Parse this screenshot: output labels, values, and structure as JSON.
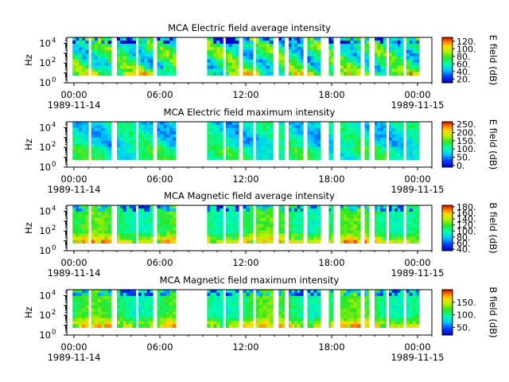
{
  "figure": {
    "instrument": "MCA"
  },
  "chart_data": [
    {
      "type": "heatmap",
      "title": "MCA  Electric field average intensity",
      "ylabel": "Hz",
      "yscale": "log",
      "ylim": [
        1,
        40000
      ],
      "y_ticks": [
        {
          "base": "10",
          "exp": "0"
        },
        {
          "base": "10",
          "exp": "2"
        },
        {
          "base": "10",
          "exp": "4"
        }
      ],
      "x_ticks": [
        "00:00",
        "06:00",
        "12:00",
        "18:00",
        "00:00"
      ],
      "x_start_date": "1989-11-14",
      "x_end_date": "1989-11-15",
      "xlim_hours": [
        -0.5,
        25
      ],
      "colorbar": {
        "label": "E field (dB)",
        "min": 10,
        "max": 130,
        "ticks": [
          "120.",
          "100.",
          "80.",
          "60.",
          "40.",
          "20."
        ],
        "tick_values": [
          120,
          100,
          80,
          60,
          40,
          20
        ]
      },
      "coverage_hours": [
        [
          -0.1,
          1.0
        ],
        [
          1.2,
          2.6
        ],
        [
          3.0,
          4.3
        ],
        [
          4.5,
          5.5
        ],
        [
          5.8,
          7.1
        ],
        [
          9.3,
          10.4
        ],
        [
          10.6,
          11.5
        ],
        [
          11.8,
          12.5
        ],
        [
          12.7,
          13.9
        ],
        [
          14.3,
          14.7
        ],
        [
          15.0,
          16.0
        ],
        [
          16.3,
          17.2
        ],
        [
          17.8,
          18.1
        ],
        [
          18.6,
          20.0
        ],
        [
          20.3,
          20.6
        ],
        [
          21.0,
          21.8
        ],
        [
          22.0,
          23.0
        ],
        [
          23.2,
          24.1
        ]
      ],
      "freq_range": [
        6,
        40000
      ],
      "mean_level": 70,
      "style": "average"
    },
    {
      "type": "heatmap",
      "title": "MCA  Electric field maximum intensity",
      "ylabel": "Hz",
      "yscale": "log",
      "ylim": [
        1,
        40000
      ],
      "y_ticks": [
        {
          "base": "10",
          "exp": "0"
        },
        {
          "base": "10",
          "exp": "2"
        },
        {
          "base": "10",
          "exp": "4"
        }
      ],
      "x_ticks": [
        "00:00",
        "06:00",
        "12:00",
        "18:00",
        "00:00"
      ],
      "x_start_date": "1989-11-14",
      "x_end_date": "1989-11-15",
      "xlim_hours": [
        -0.5,
        25
      ],
      "colorbar": {
        "label": "E field (dB)",
        "min": -10,
        "max": 265,
        "ticks": [
          "250.",
          "200.",
          "150.",
          "100.",
          "50.",
          "0."
        ],
        "tick_values": [
          250,
          200,
          150,
          100,
          50,
          0
        ]
      },
      "coverage_hours": [
        [
          -0.1,
          1.0
        ],
        [
          1.2,
          2.6
        ],
        [
          3.0,
          4.3
        ],
        [
          4.5,
          5.5
        ],
        [
          5.8,
          7.1
        ],
        [
          9.3,
          10.4
        ],
        [
          10.6,
          11.5
        ],
        [
          11.8,
          12.5
        ],
        [
          12.7,
          13.9
        ],
        [
          14.3,
          14.7
        ],
        [
          15.0,
          16.0
        ],
        [
          16.3,
          17.2
        ],
        [
          17.8,
          18.1
        ],
        [
          18.6,
          20.0
        ],
        [
          20.3,
          20.6
        ],
        [
          21.0,
          21.8
        ],
        [
          22.0,
          23.0
        ],
        [
          23.2,
          24.1
        ]
      ],
      "freq_range": [
        6,
        40000
      ],
      "mean_level": 110,
      "style": "max"
    },
    {
      "type": "heatmap",
      "title": "MCA  Magnetic field average intensity",
      "ylabel": "Hz",
      "yscale": "log",
      "ylim": [
        1,
        40000
      ],
      "y_ticks": [
        {
          "base": "10",
          "exp": "0"
        },
        {
          "base": "10",
          "exp": "2"
        },
        {
          "base": "10",
          "exp": "4"
        }
      ],
      "x_ticks": [
        "00:00",
        "06:00",
        "12:00",
        "18:00",
        "00:00"
      ],
      "x_start_date": "1989-11-14",
      "x_end_date": "1989-11-15",
      "xlim_hours": [
        -0.5,
        25
      ],
      "colorbar": {
        "label": "B field (dB)",
        "min": 35,
        "max": 185,
        "ticks": [
          "180.",
          "160.",
          "140.",
          "120.",
          "100.",
          "80.",
          "60.",
          "40."
        ],
        "tick_values": [
          180,
          160,
          140,
          120,
          100,
          80,
          60,
          40
        ]
      },
      "coverage_hours": [
        [
          -0.1,
          1.0
        ],
        [
          1.2,
          2.6
        ],
        [
          3.0,
          4.3
        ],
        [
          4.5,
          5.5
        ],
        [
          5.8,
          7.1
        ],
        [
          9.3,
          10.4
        ],
        [
          10.6,
          11.5
        ],
        [
          11.8,
          12.5
        ],
        [
          12.7,
          13.9
        ],
        [
          14.3,
          14.7
        ],
        [
          15.0,
          16.0
        ],
        [
          16.3,
          17.2
        ],
        [
          17.8,
          18.1
        ],
        [
          18.6,
          20.0
        ],
        [
          20.3,
          20.6
        ],
        [
          21.0,
          21.8
        ],
        [
          22.0,
          23.0
        ],
        [
          23.2,
          24.1
        ]
      ],
      "freq_range": [
        6,
        40000
      ],
      "mean_level": 110,
      "style": "magnetic"
    },
    {
      "type": "heatmap",
      "title": "MCA  Magnetic field maximum intensity",
      "ylabel": "Hz",
      "yscale": "log",
      "ylim": [
        1,
        40000
      ],
      "y_ticks": [
        {
          "base": "10",
          "exp": "0"
        },
        {
          "base": "10",
          "exp": "2"
        },
        {
          "base": "10",
          "exp": "4"
        }
      ],
      "x_ticks": [
        "00:00",
        "06:00",
        "12:00",
        "18:00",
        "00:00"
      ],
      "x_start_date": "1989-11-14",
      "x_end_date": "1989-11-15",
      "xlim_hours": [
        -0.5,
        25
      ],
      "colorbar": {
        "label": "B field (dB)",
        "min": 20,
        "max": 200,
        "ticks": [
          "150.",
          "100.",
          "50."
        ],
        "tick_values": [
          150,
          100,
          50
        ]
      },
      "coverage_hours": [
        [
          -0.1,
          1.0
        ],
        [
          1.2,
          2.6
        ],
        [
          3.0,
          4.3
        ],
        [
          4.5,
          5.5
        ],
        [
          5.8,
          7.1
        ],
        [
          9.3,
          10.4
        ],
        [
          10.6,
          11.5
        ],
        [
          11.8,
          12.5
        ],
        [
          12.7,
          13.9
        ],
        [
          14.3,
          14.7
        ],
        [
          15.0,
          16.0
        ],
        [
          16.3,
          17.2
        ],
        [
          17.8,
          18.1
        ],
        [
          18.6,
          20.0
        ],
        [
          20.3,
          20.6
        ],
        [
          21.0,
          21.8
        ],
        [
          22.0,
          23.0
        ],
        [
          23.2,
          24.1
        ]
      ],
      "freq_range": [
        6,
        40000
      ],
      "mean_level": 110,
      "style": "magnetic"
    }
  ]
}
